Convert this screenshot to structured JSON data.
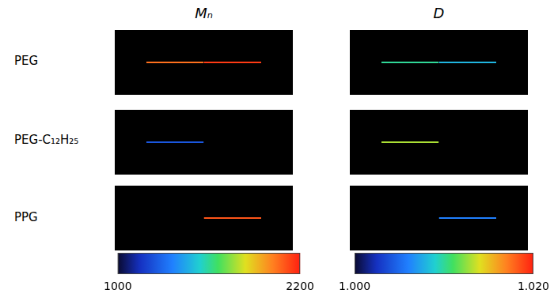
{
  "chart_data": {
    "type": "heatmap",
    "tick_labels": false,
    "rows": [
      "PEG",
      "PEG-C₁₂H₂₅",
      "PPG"
    ],
    "panels": [
      {
        "title": "Mₙ",
        "values": [
          [
            2050,
            2150
          ],
          [
            1250,
            null
          ],
          [
            null,
            2100
          ]
        ],
        "colorbar": {
          "range": [
            1000,
            2200
          ],
          "ticks": [
            1000,
            2200
          ]
        }
      },
      {
        "title": "D",
        "values": [
          [
            1.01,
            1.008
          ],
          [
            1.013,
            null
          ],
          [
            null,
            1.006
          ]
        ],
        "colorbar": {
          "range": [
            1.0,
            1.02
          ],
          "ticks": [
            {
              "value": 1.0,
              "label": "1.000"
            },
            {
              "value": 1.02,
              "label": "1.020"
            }
          ]
        }
      }
    ]
  }
}
